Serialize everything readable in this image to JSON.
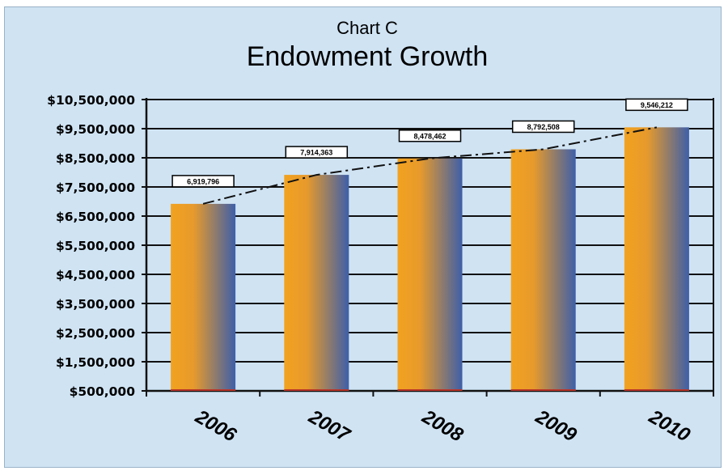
{
  "colors": {
    "background": "#cfe3f3",
    "bar_left": "#f2a21f",
    "bar_right": "#3e5fa8",
    "gridline": "#111111",
    "trendline": "#111111",
    "text": "#000000"
  },
  "chart_data": {
    "type": "bar",
    "subtitle": "Chart C",
    "title": "Endowment Growth",
    "xlabel": "",
    "ylabel": "",
    "categories": [
      "2006",
      "2007",
      "2008",
      "2009",
      "2010"
    ],
    "values": [
      6919796,
      7914363,
      8478462,
      8792508,
      9546212
    ],
    "data_labels": [
      "6,919,796",
      "7,914,363",
      "8,478,462",
      "8,792,508",
      "9,546,212"
    ],
    "ylim": [
      500000,
      10500000
    ],
    "yticks": [
      500000,
      1500000,
      2500000,
      3500000,
      4500000,
      5500000,
      6500000,
      7500000,
      8500000,
      9500000,
      10500000
    ],
    "ytick_labels": [
      "$500,000",
      "$1,500,000",
      "$2,500,000",
      "$3,500,000",
      "$4,500,000",
      "$5,500,000",
      "$6,500,000",
      "$7,500,000",
      "$8,500,000",
      "$9,500,000",
      "$10,500,000"
    ],
    "trendline": "dash-dot",
    "grid": true,
    "legend": "none"
  }
}
